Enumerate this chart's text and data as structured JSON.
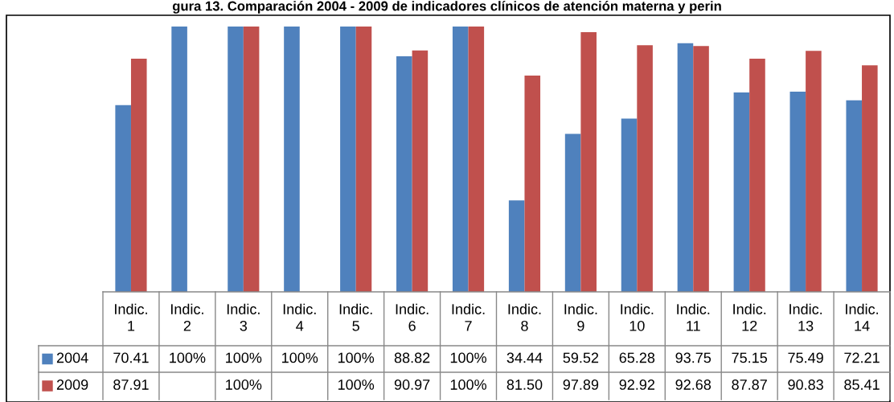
{
  "chart_data": {
    "type": "bar",
    "title": "gura 13. Comparación 2004 - 2009 de indicadores clínicos de atención materna y perin",
    "categories": [
      "Indic. 1",
      "Indic. 2",
      "Indic. 3",
      "Indic. 4",
      "Indic. 5",
      "Indic. 6",
      "Indic. 7",
      "Indic. 8",
      "Indic. 9",
      "Indic. 10",
      "Indic. 11",
      "Indic. 12",
      "Indic. 13",
      "Indic. 14"
    ],
    "series": [
      {
        "name": "2004",
        "color": "#4f81bd",
        "values": [
          70.41,
          100,
          100,
          100,
          100,
          88.82,
          100,
          34.44,
          59.52,
          65.28,
          93.75,
          75.15,
          75.49,
          72.21
        ],
        "value_labels": [
          "70.41",
          "100%",
          "100%",
          "100%",
          "100%",
          "88.82",
          "100%",
          "34.44",
          "59.52",
          "65.28",
          "93.75",
          "75.15",
          "75.49",
          "72.21"
        ]
      },
      {
        "name": "2009",
        "color": "#c0504d",
        "values": [
          87.91,
          null,
          100,
          null,
          100,
          90.97,
          100,
          81.5,
          97.89,
          92.92,
          92.68,
          87.87,
          90.83,
          85.41
        ],
        "value_labels": [
          "87.91",
          null,
          "100%",
          null,
          "100%",
          "90.97",
          "100%",
          "81.50",
          "97.89",
          "92.92",
          "92.68",
          "87.87",
          "90.83",
          "85.41"
        ]
      }
    ],
    "ylim": [
      0,
      100
    ],
    "tick_labels": false,
    "legend": "bottom"
  }
}
